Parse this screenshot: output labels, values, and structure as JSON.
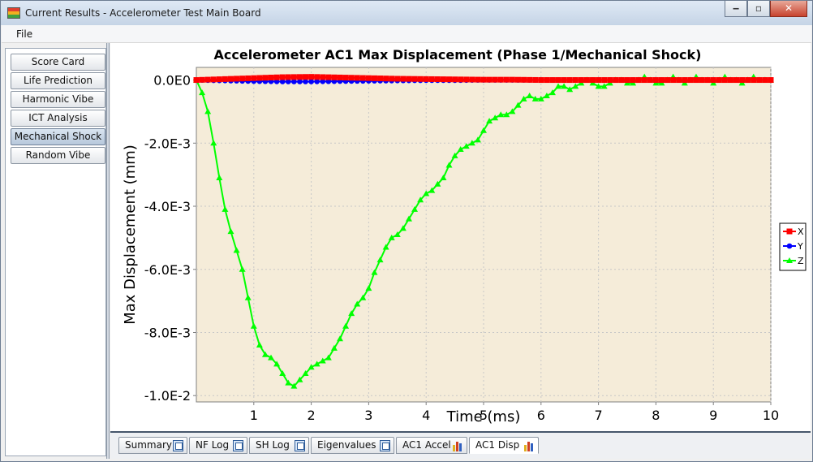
{
  "window": {
    "title": "Current Results - Accelerometer Test Main Board",
    "buttons": {
      "minimize": "‒",
      "maximize": "▫",
      "close": "✕"
    }
  },
  "menu": {
    "file": "File"
  },
  "sidebar": {
    "items": [
      {
        "label": "Score Card",
        "active": false
      },
      {
        "label": "Life Prediction",
        "active": false
      },
      {
        "label": "Harmonic Vibe",
        "active": false
      },
      {
        "label": "ICT Analysis",
        "active": false
      },
      {
        "label": "Mechanical Shock",
        "active": true
      },
      {
        "label": "Random Vibe",
        "active": false
      }
    ]
  },
  "tabs": [
    {
      "label": "Summary",
      "icon": "document-icon",
      "active": false
    },
    {
      "label": "NF Log",
      "icon": "document-icon",
      "active": false
    },
    {
      "label": "SH Log",
      "icon": "document-icon",
      "active": false
    },
    {
      "label": "Eigenvalues",
      "icon": "document-icon",
      "active": false
    },
    {
      "label": "AC1 Accel",
      "icon": "bar-chart-icon",
      "active": false
    },
    {
      "label": "AC1 Disp",
      "icon": "bar-chart-icon",
      "active": true
    }
  ],
  "chart_data": {
    "type": "line",
    "title": "Accelerometer AC1 Max Displacement (Phase 1/Mechanical Shock)",
    "xlabel": "Time (ms)",
    "ylabel": "Max Displacement (mm)",
    "xlim": [
      0.0,
      10.0
    ],
    "ylim": [
      -0.0102,
      0.0004
    ],
    "x_ticks": [
      "1",
      "2",
      "3",
      "4",
      "5",
      "6",
      "7",
      "8",
      "9",
      "10"
    ],
    "x_tick_values": [
      1,
      2,
      3,
      4,
      5,
      6,
      7,
      8,
      9,
      10
    ],
    "y_ticks": [
      "0.0E0",
      "-2.0E-3",
      "-4.0E-3",
      "-6.0E-3",
      "-8.0E-3",
      "-1.0E-2"
    ],
    "y_tick_values": [
      0,
      -0.002,
      -0.004,
      -0.006,
      -0.008,
      -0.01
    ],
    "grid": true,
    "legend_position": "right",
    "background_color": "#f5ecd9",
    "series": [
      {
        "name": "X",
        "color": "#ff0000",
        "marker": "square",
        "x": [
          0.0,
          0.5,
          1.0,
          1.5,
          2.0,
          2.5,
          3.0,
          3.5,
          4.0,
          4.5,
          5.0,
          5.5,
          6.0,
          6.5,
          7.0,
          7.5,
          8.0,
          8.5,
          9.0,
          9.5,
          10.0
        ],
        "y": [
          0.0,
          3e-05,
          6e-05,
          9e-05,
          0.0001,
          8e-05,
          6e-05,
          4e-05,
          3e-05,
          2e-05,
          1e-05,
          1e-05,
          0.0,
          0.0,
          0.0,
          0.0,
          0.0,
          0.0,
          0.0,
          0.0,
          0.0
        ]
      },
      {
        "name": "Y",
        "color": "#0000ff",
        "marker": "circle",
        "x": [
          0.0,
          0.5,
          1.0,
          1.5,
          2.0,
          2.5,
          3.0,
          3.5,
          4.0,
          4.5,
          5.0,
          5.5,
          6.0,
          6.5,
          7.0,
          7.5,
          8.0,
          8.5,
          9.0,
          9.5,
          10.0
        ],
        "y": [
          0.0,
          -2e-05,
          -4e-05,
          -5e-05,
          -5e-05,
          -4e-05,
          -3e-05,
          -2e-05,
          -1e-05,
          -1e-05,
          0.0,
          0.0,
          0.0,
          0.0,
          0.0,
          0.0,
          0.0,
          0.0,
          0.0,
          0.0,
          0.0
        ]
      },
      {
        "name": "Z",
        "color": "#00ff00",
        "marker": "triangle",
        "x": [
          0.0,
          0.1,
          0.2,
          0.3,
          0.4,
          0.5,
          0.6,
          0.7,
          0.8,
          0.9,
          1.0,
          1.1,
          1.2,
          1.3,
          1.4,
          1.5,
          1.6,
          1.7,
          1.8,
          1.9,
          2.0,
          2.1,
          2.2,
          2.3,
          2.4,
          2.5,
          2.6,
          2.7,
          2.8,
          2.9,
          3.0,
          3.1,
          3.2,
          3.3,
          3.4,
          3.5,
          3.6,
          3.7,
          3.8,
          3.9,
          4.0,
          4.1,
          4.2,
          4.3,
          4.4,
          4.5,
          4.6,
          4.7,
          4.8,
          4.9,
          5.0,
          5.1,
          5.2,
          5.3,
          5.4,
          5.5,
          5.6,
          5.7,
          5.8,
          5.9,
          6.0,
          6.1,
          6.2,
          6.3,
          6.4,
          6.5,
          6.6,
          6.7,
          6.8,
          6.9,
          7.0,
          7.1,
          7.2,
          7.3,
          7.4,
          7.5,
          7.6,
          7.7,
          7.8,
          7.9,
          8.0,
          8.1,
          8.2,
          8.3,
          8.4,
          8.5,
          8.6,
          8.7,
          8.8,
          8.9,
          9.0,
          9.1,
          9.2,
          9.3,
          9.4,
          9.5,
          9.6,
          9.7,
          9.8,
          9.9,
          10.0
        ],
        "y": [
          0.0,
          -0.0004,
          -0.001,
          -0.002,
          -0.0031,
          -0.0041,
          -0.0048,
          -0.0054,
          -0.006,
          -0.0069,
          -0.0078,
          -0.0084,
          -0.0087,
          -0.0088,
          -0.009,
          -0.0093,
          -0.0096,
          -0.0097,
          -0.0095,
          -0.0093,
          -0.0091,
          -0.009,
          -0.0089,
          -0.0088,
          -0.0085,
          -0.0082,
          -0.0078,
          -0.0074,
          -0.0071,
          -0.0069,
          -0.0066,
          -0.0061,
          -0.0057,
          -0.0053,
          -0.005,
          -0.0049,
          -0.0047,
          -0.0044,
          -0.0041,
          -0.0038,
          -0.0036,
          -0.0035,
          -0.0033,
          -0.0031,
          -0.0027,
          -0.0024,
          -0.0022,
          -0.0021,
          -0.002,
          -0.0019,
          -0.0016,
          -0.0013,
          -0.0012,
          -0.0011,
          -0.0011,
          -0.001,
          -0.0008,
          -0.0006,
          -0.0005,
          -0.0006,
          -0.0006,
          -0.0005,
          -0.0004,
          -0.0002,
          -0.0002,
          -0.0003,
          -0.0002,
          -0.0001,
          0.0,
          -0.0001,
          -0.0002,
          -0.0002,
          -0.0001,
          0.0,
          0.0,
          -0.0001,
          -0.0001,
          0.0,
          0.0001,
          0.0,
          -0.0001,
          -0.0001,
          0.0,
          0.0001,
          0.0,
          -0.0001,
          0.0,
          0.0001,
          0.0,
          0.0,
          -0.0001,
          0.0,
          0.0001,
          0.0,
          0.0,
          -0.0001,
          0.0,
          0.0001,
          0.0,
          0.0,
          0.0
        ]
      }
    ]
  }
}
